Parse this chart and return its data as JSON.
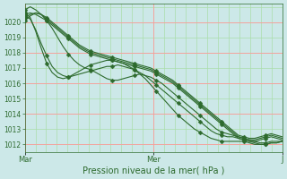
{
  "bg_color": "#cce8e8",
  "grid_color_major": "#ff9999",
  "grid_color_minor": "#aaddaa",
  "line_color": "#2d6a2d",
  "marker_color": "#2d6a2d",
  "ylim": [
    1011.5,
    1021.2
  ],
  "yticks": [
    1012,
    1013,
    1014,
    1015,
    1016,
    1017,
    1018,
    1019,
    1020
  ],
  "xlabel": "Pression niveau de la mer( hPa )",
  "xtick_labels": [
    "Mar",
    "Mer",
    "J"
  ],
  "xtick_positions": [
    0,
    0.5,
    1.0
  ],
  "n_major_vert": 3,
  "n_minor_vert": 24,
  "n_minor_horiz": 9,
  "series": [
    {
      "values": [
        1020.5,
        1020.6,
        1020.5,
        1020.3,
        1020.1,
        1019.8,
        1019.5,
        1019.2,
        1018.9,
        1018.6,
        1018.3,
        1018.1,
        1017.9,
        1017.8,
        1017.7,
        1017.6,
        1017.5,
        1017.4,
        1017.3,
        1017.2,
        1017.1,
        1017.0,
        1016.9,
        1016.8,
        1016.6,
        1016.4,
        1016.2,
        1016.0,
        1015.7,
        1015.4,
        1015.1,
        1014.8,
        1014.5,
        1014.2,
        1013.9,
        1013.6,
        1013.3,
        1013.0,
        1012.7,
        1012.4,
        1012.3,
        1012.2,
        1012.2,
        1012.3,
        1012.4,
        1012.5,
        1012.4,
        1012.3
      ],
      "markers": true,
      "lw": 0.8
    },
    {
      "values": [
        1020.3,
        1020.5,
        1020.6,
        1020.5,
        1020.3,
        1020.0,
        1019.7,
        1019.4,
        1019.1,
        1018.8,
        1018.5,
        1018.3,
        1018.1,
        1018.0,
        1017.9,
        1017.8,
        1017.7,
        1017.6,
        1017.5,
        1017.4,
        1017.3,
        1017.2,
        1017.1,
        1017.0,
        1016.8,
        1016.6,
        1016.4,
        1016.2,
        1015.9,
        1015.6,
        1015.3,
        1015.0,
        1014.7,
        1014.4,
        1014.1,
        1013.8,
        1013.5,
        1013.2,
        1012.9,
        1012.6,
        1012.5,
        1012.4,
        1012.4,
        1012.5,
        1012.6,
        1012.7,
        1012.6,
        1012.5
      ],
      "markers": true,
      "lw": 0.8
    },
    {
      "values": [
        1020.8,
        1021.0,
        1020.8,
        1020.5,
        1020.2,
        1019.9,
        1019.6,
        1019.3,
        1019.0,
        1018.7,
        1018.4,
        1018.2,
        1018.0,
        1017.9,
        1017.8,
        1017.7,
        1017.6,
        1017.5,
        1017.4,
        1017.3,
        1017.2,
        1017.1,
        1017.0,
        1016.9,
        1016.7,
        1016.5,
        1016.3,
        1016.1,
        1015.8,
        1015.5,
        1015.2,
        1014.9,
        1014.6,
        1014.3,
        1014.0,
        1013.7,
        1013.4,
        1013.1,
        1012.8,
        1012.5,
        1012.4,
        1012.3,
        1012.3,
        1012.4,
        1012.5,
        1012.6,
        1012.5,
        1012.4
      ],
      "markers": true,
      "lw": 0.8
    },
    {
      "values": [
        1020.1,
        1020.4,
        1020.6,
        1020.5,
        1020.1,
        1019.6,
        1019.0,
        1018.4,
        1017.9,
        1017.5,
        1017.2,
        1017.0,
        1016.9,
        1016.7,
        1016.5,
        1016.3,
        1016.2,
        1016.2,
        1016.3,
        1016.4,
        1016.5,
        1016.6,
        1016.5,
        1016.4,
        1016.2,
        1016.0,
        1015.7,
        1015.4,
        1015.1,
        1014.8,
        1014.5,
        1014.2,
        1013.9,
        1013.6,
        1013.3,
        1013.0,
        1012.8,
        1012.7,
        1012.6,
        1012.5,
        1012.4,
        1012.3,
        1012.2,
        1012.1,
        1012.1,
        1012.2,
        1012.2,
        1012.2
      ],
      "markers": true,
      "lw": 0.8
    },
    {
      "values": [
        1020.4,
        1020.2,
        1019.5,
        1018.6,
        1017.8,
        1017.1,
        1016.7,
        1016.5,
        1016.4,
        1016.5,
        1016.6,
        1016.7,
        1016.8,
        1016.9,
        1017.0,
        1017.1,
        1017.1,
        1017.2,
        1017.1,
        1017.0,
        1016.9,
        1016.7,
        1016.5,
        1016.2,
        1015.9,
        1015.6,
        1015.3,
        1015.0,
        1014.7,
        1014.4,
        1014.1,
        1013.8,
        1013.5,
        1013.2,
        1012.9,
        1012.7,
        1012.6,
        1012.5,
        1012.5,
        1012.4,
        1012.3,
        1012.2,
        1012.1,
        1012.0,
        1012.0,
        1012.1,
        1012.1,
        1012.2
      ],
      "markers": true,
      "lw": 0.8
    },
    {
      "values": [
        1020.6,
        1020.3,
        1019.4,
        1018.3,
        1017.3,
        1016.7,
        1016.4,
        1016.3,
        1016.4,
        1016.6,
        1016.8,
        1017.0,
        1017.2,
        1017.3,
        1017.4,
        1017.5,
        1017.5,
        1017.4,
        1017.3,
        1017.1,
        1016.9,
        1016.6,
        1016.3,
        1015.9,
        1015.5,
        1015.1,
        1014.7,
        1014.3,
        1013.9,
        1013.6,
        1013.3,
        1013.0,
        1012.8,
        1012.6,
        1012.4,
        1012.3,
        1012.2,
        1012.2,
        1012.2,
        1012.2,
        1012.2,
        1012.1,
        1012.0,
        1012.0,
        1012.0,
        1012.1,
        1012.1,
        1012.2
      ],
      "markers": true,
      "lw": 0.8
    }
  ],
  "marker_step": 4,
  "marker_size": 2.5
}
